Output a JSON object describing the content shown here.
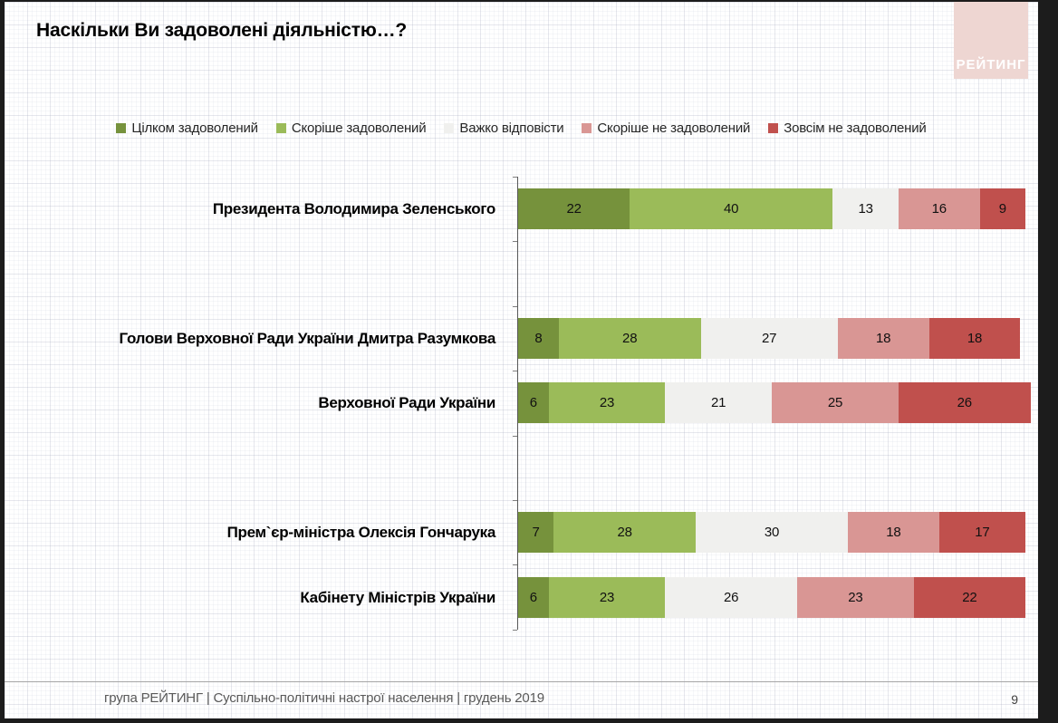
{
  "frame": {
    "background": "#1c1c1c"
  },
  "header": {
    "title": "Наскільки Ви задоволені діяльністю…?",
    "logo_text": "РЕЙТИНГ",
    "logo_bg": "#EED6D2"
  },
  "chart_data": {
    "type": "bar",
    "stacked": true,
    "orientation": "horizontal",
    "title": "Наскільки Ви задоволені діяльністю…?",
    "xlim": [
      0,
      100
    ],
    "grid": false,
    "legend_position": "top",
    "value_labels": "inside",
    "categories": [
      "Президента Володимира Зеленського",
      "Голови Верховної Ради України Дмитра Разумкова",
      "Верховної Ради України",
      "Прем`єр-міністра Олексія Гончарука",
      "Кабінету Міністрів України"
    ],
    "series": [
      {
        "name": "Цілком задоволений",
        "color": "#76923C",
        "values": [
          22,
          8,
          6,
          7,
          6
        ]
      },
      {
        "name": "Скоріше задоволений",
        "color": "#9BBB59",
        "values": [
          40,
          28,
          23,
          28,
          23
        ]
      },
      {
        "name": "Важко відповісти",
        "color": "#F0F0EE",
        "values": [
          13,
          27,
          21,
          30,
          26
        ]
      },
      {
        "name": "Скоріше не задоволений",
        "color": "#D99694",
        "values": [
          16,
          18,
          25,
          18,
          23
        ]
      },
      {
        "name": "Зовсім не задоволений",
        "color": "#C0504D",
        "values": [
          9,
          18,
          26,
          17,
          22
        ]
      }
    ]
  },
  "footer": {
    "source_line": "група РЕЙТИНГ | Суспільно-політичні настрої населення  | грудень 2019",
    "page_number": "9"
  }
}
